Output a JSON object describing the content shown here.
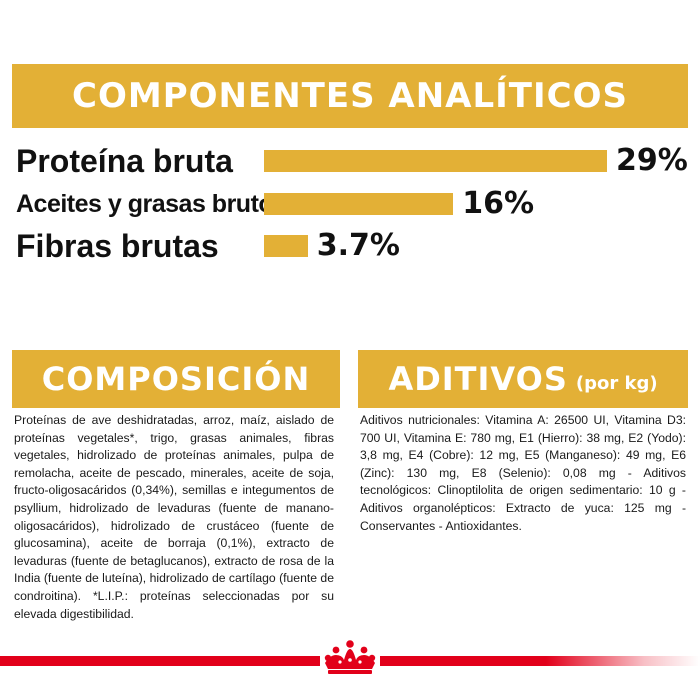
{
  "analytic": {
    "title": "COMPONENTES ANALÍTICOS",
    "rows": [
      {
        "label": "Proteína bruta",
        "value": "29%",
        "percent": 29
      },
      {
        "label": "Aceites y grasas brutos",
        "value": "16%",
        "percent": 16
      },
      {
        "label": "Fibras brutas",
        "value": "3.7%",
        "percent": 3.7
      }
    ]
  },
  "composition": {
    "title": "COMPOSICIÓN",
    "text": "Proteínas de ave deshidratadas, arroz, maíz, aislado de proteínas vegetales*, trigo, grasas animales, fibras vegetales, hidrolizado de proteínas animales, pulpa de remolacha, aceite de pescado, minerales, aceite de soja, fructo-oligosacáridos (0,34%), semillas e integumentos de psyllium, hidrolizado de levaduras (fuente de manano-oligosacáridos), hidrolizado de crustáceo (fuente de glucosamina), aceite de borraja (0,1%), extracto de levaduras (fuente de betaglucanos), extracto de rosa de la India (fuente de luteína), hidrolizado de cartílago (fuente de condroitina). *L.I.P.: proteínas seleccionadas por su elevada digestibilidad."
  },
  "additives": {
    "title": "ADITIVOS",
    "unit": "(por kg)",
    "text": "Aditivos nutricionales: Vitamina A: 26500 UI, Vitamina D3: 700 UI, Vitamina E: 780 mg, E1 (Hierro): 38 mg, E2 (Yodo): 3,8 mg, E4 (Cobre): 12 mg, E5 (Manganeso): 49 mg, E6 (Zinc): 130 mg, E8 (Selenio): 0,08 mg - Aditivos tecnológicos: Clinoptilolita de origen sedimentario: 10 g - Aditivos organolépticos: Extracto de yuca: 125 mg - Conservantes - Antioxidantes."
  },
  "colors": {
    "accent": "#e3b036",
    "brand_red": "#e2001a",
    "text": "#111111"
  },
  "logo": {
    "icon": "royal-crown-icon"
  }
}
